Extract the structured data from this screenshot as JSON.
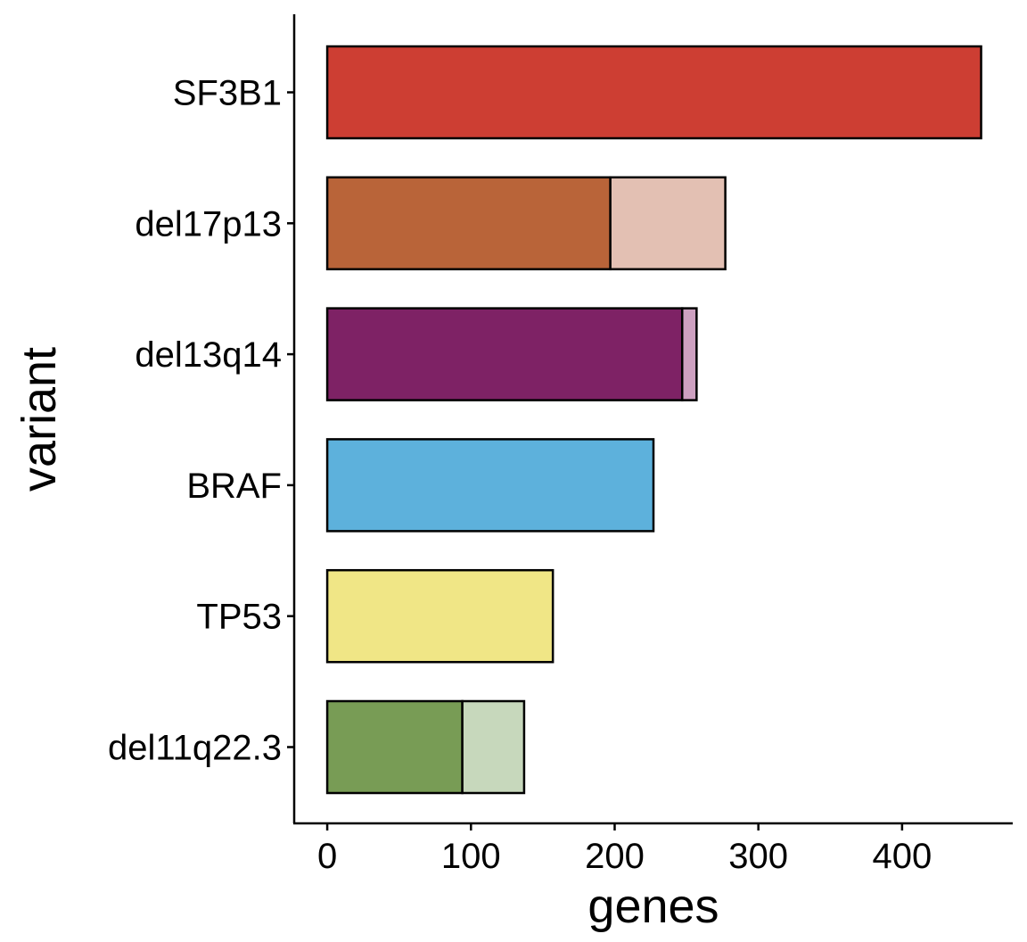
{
  "chart_data": {
    "type": "bar",
    "orientation": "horizontal",
    "stacked": true,
    "xlabel": "genes",
    "ylabel": "variant",
    "xlim": [
      -23,
      477
    ],
    "x_ticks": [
      0,
      100,
      200,
      300,
      400
    ],
    "legend": "none",
    "grid": false,
    "categories": [
      "SF3B1",
      "del17p13",
      "del13q14",
      "BRAF",
      "TP53",
      "del11q22.3"
    ],
    "series": [
      {
        "values": [
          455,
          197,
          247,
          227,
          157,
          94
        ]
      },
      {
        "values": [
          0,
          80,
          10,
          0,
          0,
          43
        ]
      }
    ],
    "colors": [
      [
        "#CD3E33",
        "#E3C0B3"
      ],
      [
        "#B96439",
        "#E3C0B3"
      ],
      [
        "#7E2265",
        "#CDA0C0"
      ],
      [
        "#5DB1DC",
        "#5DB1DC"
      ],
      [
        "#F0E686",
        "#F0E686"
      ],
      [
        "#789C55",
        "#C7D8BC"
      ]
    ]
  }
}
